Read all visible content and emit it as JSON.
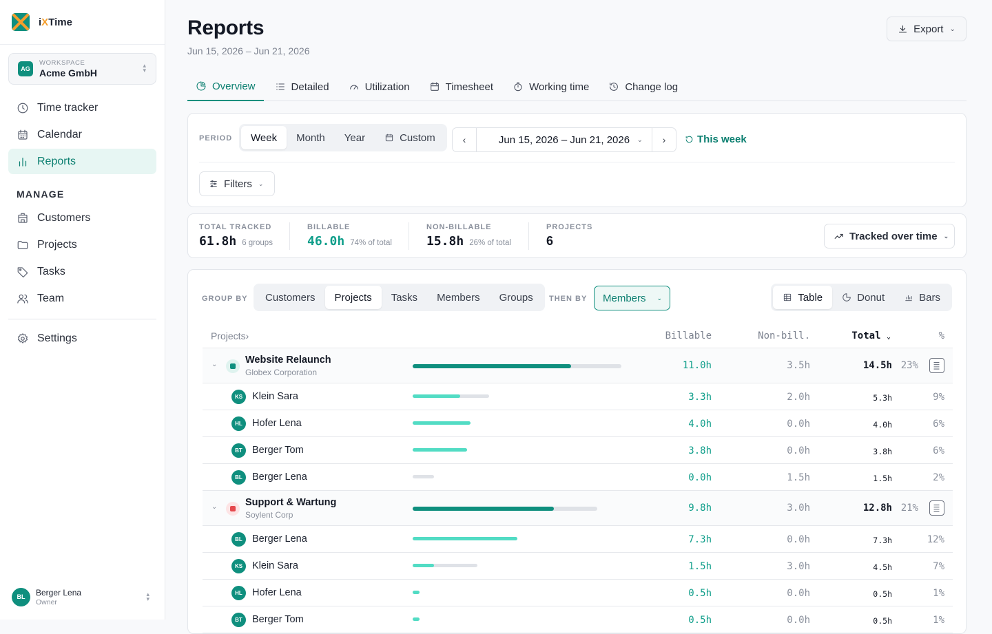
{
  "app": {
    "name_prefix": "i",
    "name_x": "X",
    "name_suffix": "Time"
  },
  "workspace": {
    "label": "WORKSPACE",
    "name": "Acme GmbH",
    "initials": "AG"
  },
  "nav": {
    "main": [
      {
        "label": "Time tracker",
        "icon": "clock-icon"
      },
      {
        "label": "Calendar",
        "icon": "calendar-icon"
      },
      {
        "label": "Reports",
        "icon": "bar-chart-icon",
        "active": true
      }
    ],
    "manage_label": "MANAGE",
    "manage": [
      {
        "label": "Customers",
        "icon": "building-icon"
      },
      {
        "label": "Projects",
        "icon": "folder-icon"
      },
      {
        "label": "Tasks",
        "icon": "tag-icon"
      },
      {
        "label": "Team",
        "icon": "users-icon"
      }
    ],
    "settings": {
      "label": "Settings",
      "icon": "gear-icon"
    }
  },
  "user": {
    "name": "Berger Lena",
    "role": "Owner",
    "initials": "BL"
  },
  "header": {
    "title": "Reports",
    "range": "Jun 15, 2026 – Jun 21, 2026",
    "export_label": "Export"
  },
  "tabs": [
    {
      "label": "Overview",
      "active": true
    },
    {
      "label": "Detailed"
    },
    {
      "label": "Utilization"
    },
    {
      "label": "Timesheet"
    },
    {
      "label": "Working time"
    },
    {
      "label": "Change log"
    }
  ],
  "period": {
    "label": "PERIOD",
    "options": [
      "Week",
      "Month",
      "Year",
      "Custom"
    ],
    "selected": "Week",
    "range": "Jun 15, 2026 – Jun 21, 2026",
    "this_week_label": "This week",
    "filters_label": "Filters"
  },
  "stats": [
    {
      "label": "TOTAL TRACKED",
      "value": "61.8h",
      "sub": "6 groups"
    },
    {
      "label": "BILLABLE",
      "value": "46.0h",
      "sub": "74% of total"
    },
    {
      "label": "NON-BILLABLE",
      "value": "15.8h",
      "sub": "26% of total"
    },
    {
      "label": "PROJECTS",
      "value": "6",
      "sub": ""
    }
  ],
  "tracked_over_time_label": "Tracked over time",
  "grouping": {
    "group_by_label": "GROUP BY",
    "group_by_options": [
      "Customers",
      "Projects",
      "Tasks",
      "Members",
      "Groups"
    ],
    "group_by_selected": "Projects",
    "then_by_label": "THEN BY",
    "then_by_value": "Members",
    "views": [
      "Table",
      "Donut",
      "Bars"
    ],
    "view_selected": "Table"
  },
  "table": {
    "headers": {
      "name": "Projects›",
      "billable": "Billable",
      "non_billable": "Non-bill.",
      "total": "Total",
      "percent": "%"
    },
    "groups": [
      {
        "name": "Website Relaunch",
        "customer": "Globex Corporation",
        "color": "#0f8f7e",
        "dot_bg": "#dff3ef",
        "billable": "11.0h",
        "non_billable": "3.5h",
        "total": "14.5h",
        "percent": "23%",
        "bar_total_frac": 1.0,
        "bar_billable_frac": 0.759,
        "members": [
          {
            "initials": "KS",
            "name": "Klein Sara",
            "billable": "3.3h",
            "non_billable": "2.0h",
            "total": "5.3h",
            "percent": "9%",
            "bar_total_frac": 0.366,
            "bar_billable_frac": 0.623
          },
          {
            "initials": "HL",
            "name": "Hofer Lena",
            "billable": "4.0h",
            "non_billable": "0.0h",
            "total": "4.0h",
            "percent": "6%",
            "bar_total_frac": 0.276,
            "bar_billable_frac": 1.0
          },
          {
            "initials": "BT",
            "name": "Berger Tom",
            "billable": "3.8h",
            "non_billable": "0.0h",
            "total": "3.8h",
            "percent": "6%",
            "bar_total_frac": 0.262,
            "bar_billable_frac": 1.0
          },
          {
            "initials": "BL",
            "name": "Berger Lena",
            "billable": "0.0h",
            "non_billable": "1.5h",
            "total": "1.5h",
            "percent": "2%",
            "bar_total_frac": 0.103,
            "bar_billable_frac": 0.0
          }
        ]
      },
      {
        "name": "Support & Wartung",
        "customer": "Soylent Corp",
        "color": "#e5484d",
        "dot_bg": "#fde4e5",
        "billable": "9.8h",
        "non_billable": "3.0h",
        "total": "12.8h",
        "percent": "21%",
        "bar_total_frac": 0.883,
        "bar_billable_frac": 0.766,
        "members": [
          {
            "initials": "BL",
            "name": "Berger Lena",
            "billable": "7.3h",
            "non_billable": "0.0h",
            "total": "7.3h",
            "percent": "12%",
            "bar_total_frac": 0.503,
            "bar_billable_frac": 1.0
          },
          {
            "initials": "KS",
            "name": "Klein Sara",
            "billable": "1.5h",
            "non_billable": "3.0h",
            "total": "4.5h",
            "percent": "7%",
            "bar_total_frac": 0.31,
            "bar_billable_frac": 0.333
          },
          {
            "initials": "HL",
            "name": "Hofer Lena",
            "billable": "0.5h",
            "non_billable": "0.0h",
            "total": "0.5h",
            "percent": "1%",
            "bar_total_frac": 0.034,
            "bar_billable_frac": 1.0
          },
          {
            "initials": "BT",
            "name": "Berger Tom",
            "billable": "0.5h",
            "non_billable": "0.0h",
            "total": "0.5h",
            "percent": "1%",
            "bar_total_frac": 0.034,
            "bar_billable_frac": 1.0
          }
        ]
      }
    ]
  },
  "colors": {
    "accent": "#0f8f7e",
    "accent_light": "#52dcc4",
    "logo_orange": "#f59e2b"
  }
}
